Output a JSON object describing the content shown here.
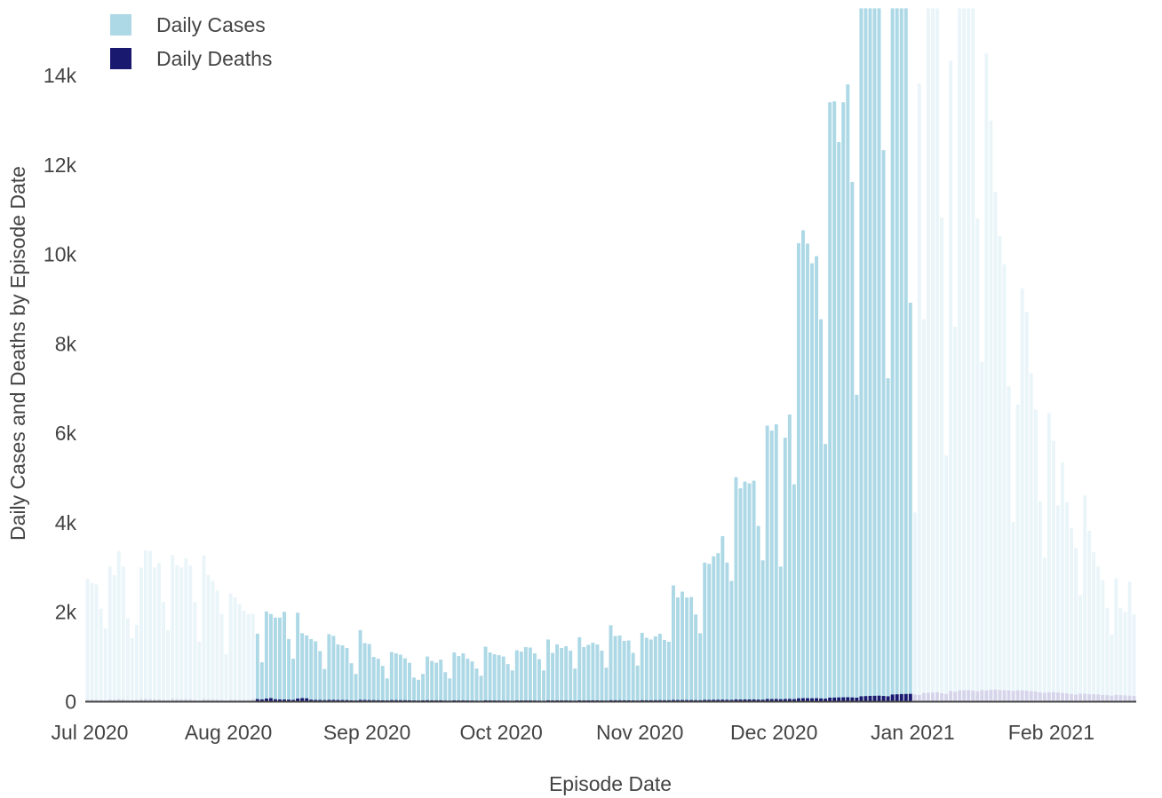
{
  "chart_data": {
    "type": "bar",
    "barmode": "overlay",
    "title": "",
    "xlabel": "Episode Date",
    "ylabel": "Daily Cases and Deaths by Episode Date",
    "x_start_date": "2020-06-30",
    "x_ticks": [
      "Jul 2020",
      "Aug 2020",
      "Sep 2020",
      "Oct 2020",
      "Nov 2020",
      "Dec 2020",
      "Jan 2021",
      "Feb 2021"
    ],
    "ylim": [
      0,
      15500
    ],
    "y_ticks": [
      0,
      2000,
      4000,
      6000,
      8000,
      10000,
      12000,
      14000
    ],
    "y_tick_labels": [
      "0",
      "2k",
      "4k",
      "6k",
      "8k",
      "10k",
      "12k",
      "14k"
    ],
    "highlight_range": [
      "2020-08-07",
      "2020-12-31"
    ],
    "legend": {
      "position": "top-left"
    },
    "series": [
      {
        "name": "Daily Cases",
        "color": "#add8e6",
        "faded_color": "#eaf5f9",
        "values": [
          2750,
          2650,
          2620,
          2080,
          1640,
          3020,
          2830,
          3370,
          3020,
          1870,
          1420,
          1720,
          3000,
          3380,
          3370,
          3000,
          3100,
          2230,
          1600,
          3280,
          3050,
          3000,
          3200,
          3050,
          2230,
          1340,
          3270,
          2830,
          2700,
          2480,
          1960,
          1060,
          2420,
          2330,
          2180,
          2030,
          1960,
          1960,
          1520,
          880,
          2020,
          1960,
          1880,
          1880,
          2010,
          1400,
          960,
          1990,
          1530,
          1480,
          1400,
          1350,
          1130,
          730,
          1510,
          1470,
          1280,
          1260,
          1200,
          860,
          620,
          1600,
          1310,
          1290,
          1000,
          960,
          800,
          520,
          1110,
          1080,
          1050,
          970,
          870,
          540,
          490,
          620,
          1010,
          910,
          870,
          940,
          660,
          520,
          1100,
          1020,
          1080,
          960,
          900,
          740,
          580,
          1230,
          1100,
          1060,
          1040,
          1010,
          840,
          700,
          1150,
          1120,
          1220,
          1210,
          1080,
          950,
          700,
          1390,
          1090,
          1280,
          1200,
          1240,
          1140,
          740,
          1440,
          1220,
          1270,
          1320,
          1280,
          1140,
          760,
          1710,
          1470,
          1480,
          1360,
          1370,
          1090,
          810,
          1540,
          1430,
          1390,
          1460,
          1520,
          1380,
          1340,
          2600,
          2330,
          2460,
          2330,
          2340,
          1950,
          1530,
          3110,
          3080,
          3250,
          3320,
          3700,
          3110,
          2700,
          5020,
          4770,
          4920,
          4880,
          4940,
          3930,
          3160,
          6170,
          6060,
          6200,
          3020,
          5900,
          6420,
          4860,
          10250,
          10540,
          10240,
          9800,
          9960,
          8550,
          5760,
          13400,
          13420,
          12510,
          13400,
          13800,
          11620,
          6860,
          15500,
          15500,
          15500,
          15500,
          15500,
          12330,
          7230,
          15500,
          15500,
          15500,
          15500,
          8920,
          4230,
          13820,
          8550,
          15500,
          15500,
          15500,
          10820,
          5500,
          14330,
          8380,
          15500,
          15500,
          15500,
          15500,
          10800,
          7600,
          14490,
          12990,
          11400,
          10410,
          9780,
          7050,
          4020,
          6640,
          9240,
          8710,
          7340,
          6530,
          4480,
          3220,
          6450,
          5830,
          4390,
          5350,
          4460,
          3880,
          3440,
          2380,
          4620,
          3820,
          3340,
          3020,
          2720,
          2100,
          1500,
          2760,
          2090,
          2010,
          2680,
          1950
        ]
      },
      {
        "name": "Daily Deaths",
        "color": "#191970",
        "faded_color": "#d6d4ea",
        "values": [
          40,
          45,
          38,
          35,
          30,
          50,
          45,
          55,
          50,
          40,
          35,
          40,
          55,
          60,
          55,
          50,
          50,
          40,
          35,
          60,
          55,
          50,
          55,
          50,
          40,
          30,
          55,
          50,
          48,
          45,
          40,
          30,
          45,
          44,
          42,
          40,
          38,
          60,
          58,
          50,
          70,
          80,
          55,
          50,
          48,
          45,
          40,
          70,
          80,
          75,
          45,
          40,
          38,
          35,
          40,
          40,
          38,
          36,
          35,
          30,
          28,
          40,
          38,
          36,
          34,
          32,
          30,
          28,
          35,
          34,
          33,
          32,
          30,
          28,
          26,
          30,
          32,
          30,
          29,
          30,
          26,
          24,
          30,
          28,
          29,
          27,
          26,
          24,
          22,
          30,
          28,
          27,
          26,
          26,
          24,
          22,
          28,
          27,
          28,
          28,
          26,
          24,
          22,
          30,
          28,
          29,
          28,
          28,
          26,
          24,
          30,
          28,
          29,
          30,
          29,
          27,
          25,
          32,
          31,
          31,
          30,
          30,
          28,
          26,
          32,
          31,
          31,
          32,
          33,
          32,
          32,
          38,
          36,
          37,
          36,
          36,
          34,
          32,
          40,
          40,
          42,
          43,
          45,
          42,
          40,
          50,
          48,
          50,
          50,
          50,
          46,
          44,
          60,
          58,
          60,
          55,
          60,
          62,
          58,
          75,
          78,
          78,
          76,
          78,
          72,
          68,
          90,
          92,
          95,
          98,
          100,
          95,
          90,
          120,
          125,
          130,
          132,
          135,
          128,
          120,
          160,
          165,
          170,
          172,
          175,
          160,
          150,
          195,
          200,
          205,
          210,
          190,
          170,
          240,
          220,
          250,
          255,
          260,
          245,
          230,
          260,
          250,
          265,
          270,
          260,
          255,
          250,
          240,
          255,
          250,
          245,
          235,
          225,
          210,
          200,
          210,
          215,
          205,
          195,
          185,
          170,
          160,
          180,
          175,
          165,
          165,
          160,
          150,
          145,
          135,
          150,
          145,
          140,
          135,
          128,
          120,
          110,
          120,
          115,
          110,
          115,
          105
        ]
      }
    ]
  }
}
